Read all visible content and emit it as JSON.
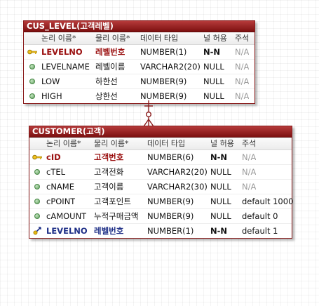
{
  "colors": {
    "title_bar": "#8a1c1c",
    "pk_text": "#9a0f0f",
    "fk_text": "#1d2e86",
    "attr_dot": "#5e9d5c",
    "relation_line": "#8a1c1c"
  },
  "headers": {
    "logical": "논리 이름*",
    "physical": "물리 이름*",
    "datatype": "데이터 타입",
    "null": "널 허용",
    "comment": "주석"
  },
  "cus_level": {
    "title": "CUS_LEVEL(고객레벨)",
    "rows": [
      {
        "logical": "LEVELNO",
        "physical": "레벨번호",
        "datatype": "NUMBER(1)",
        "null": "N-N",
        "comment": "N/A",
        "icon": "key-icon"
      },
      {
        "logical": "LEVELNAME",
        "physical": "레벨이름",
        "datatype": "VARCHAR2(20)",
        "null": "NULL",
        "comment": "N/A",
        "icon": "attribute-dot-icon"
      },
      {
        "logical": "LOW",
        "physical": "하한선",
        "datatype": "NUMBER(9)",
        "null": "NULL",
        "comment": "N/A",
        "icon": "attribute-dot-icon"
      },
      {
        "logical": "HIGH",
        "physical": "상한선",
        "datatype": "NUMBER(9)",
        "null": "NULL",
        "comment": "N/A",
        "icon": "attribute-dot-icon"
      }
    ]
  },
  "customer": {
    "title": "CUSTOMER(고객)",
    "rows": [
      {
        "logical": "cID",
        "physical": "고객번호",
        "datatype": "NUMBER(6)",
        "null": "N-N",
        "comment": "N/A",
        "icon": "key-icon"
      },
      {
        "logical": "cTEL",
        "physical": "고객전화",
        "datatype": "VARCHAR2(20)",
        "null": "NULL",
        "comment": "N/A",
        "icon": "attribute-dot-icon"
      },
      {
        "logical": "cNAME",
        "physical": "고객이름",
        "datatype": "VARCHAR2(30)",
        "null": "NULL",
        "comment": "N/A",
        "icon": "attribute-dot-icon"
      },
      {
        "logical": "cPOINT",
        "physical": "고객포인트",
        "datatype": "NUMBER(9)",
        "null": "NULL",
        "comment": "default 1000",
        "icon": "attribute-dot-icon"
      },
      {
        "logical": "cAMOUNT",
        "physical": "누적구매금액",
        "datatype": "NUMBER(9)",
        "null": "NULL",
        "comment": "default 0",
        "icon": "attribute-dot-icon"
      },
      {
        "logical": "LEVELNO",
        "physical": "레벨번호",
        "datatype": "NUMBER(1)",
        "null": "N-N",
        "comment": "default 1",
        "icon": "foreign-key-icon"
      }
    ]
  }
}
